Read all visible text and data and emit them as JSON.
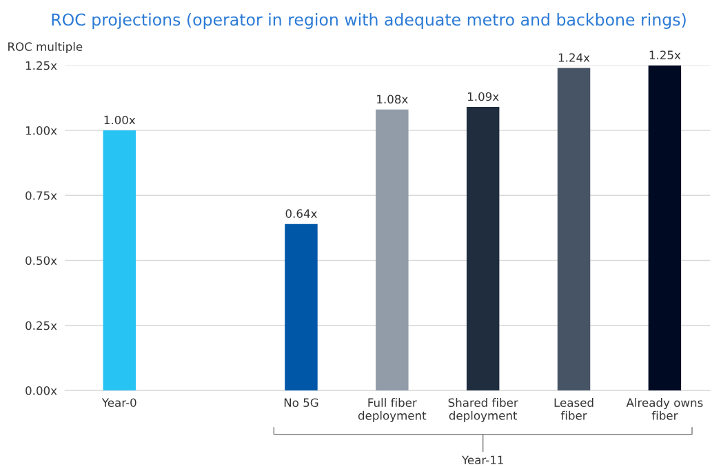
{
  "chart_data": {
    "type": "bar",
    "title": "ROC projections (operator in region with adequate metro and backbone rings)",
    "ylabel": "ROC multiple",
    "categories": [
      "Year-0",
      null,
      "No 5G",
      "Full fiber\ndeployment",
      "Shared fiber\ndeployment",
      "Leased\nfiber",
      "Already owns\nfiber"
    ],
    "values": [
      1.0,
      null,
      0.64,
      1.08,
      1.09,
      1.24,
      1.25
    ],
    "value_labels": [
      "1.00x",
      null,
      "0.64x",
      "1.08x",
      "1.09x",
      "1.24x",
      "1.25x"
    ],
    "colors": [
      "#27c3f3",
      "#27c3f3",
      "#0057a8",
      "#919ca8",
      "#1f2d3f",
      "#475465",
      "#000a22"
    ],
    "ylim": [
      0,
      1.25
    ],
    "yticks": [
      {
        "value": 0,
        "label": "0.00x"
      },
      {
        "value": 0.25,
        "label": "0.25x"
      },
      {
        "value": 0.5,
        "label": "0.50x"
      },
      {
        "value": 0.75,
        "label": "0.75x"
      },
      {
        "value": 1.0,
        "label": "1.00x"
      },
      {
        "value": 1.25,
        "label": "1.25x"
      }
    ],
    "grid": "y",
    "annotations": [
      "Year-11"
    ]
  }
}
